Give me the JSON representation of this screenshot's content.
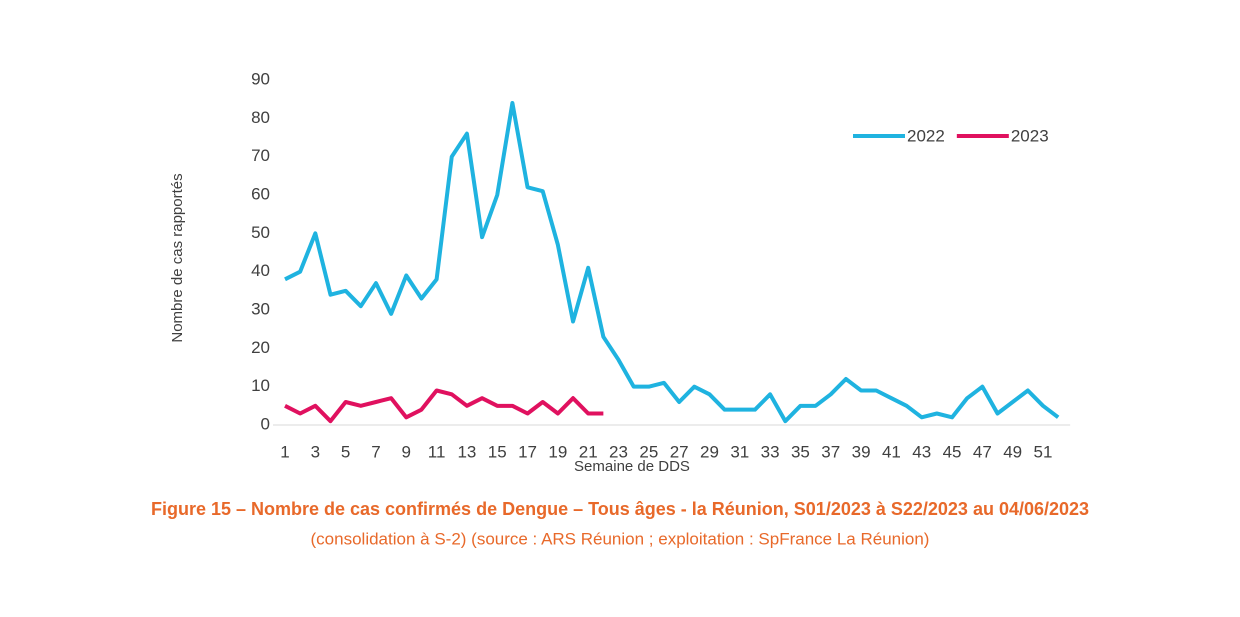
{
  "chart_data": {
    "type": "line",
    "title": "Figure 15 – Nombre de cas confirmés de Dengue – Tous âges - la Réunion, S01/2023 à S22/2023 au 04/06/2023",
    "subtitle": "(consolidation à S-2) (source : ARS Réunion ; exploitation : SpFrance La Réunion)",
    "y_label": "Nombre de cas rapportés",
    "x_label": "Semaine de DDS",
    "categories": [
      1,
      null,
      3,
      null,
      5,
      null,
      7,
      null,
      9,
      null,
      11,
      null,
      13,
      null,
      15,
      null,
      17,
      null,
      19,
      null,
      21,
      null,
      23,
      null,
      25,
      null,
      27,
      null,
      29,
      null,
      31,
      null,
      33,
      null,
      35,
      null,
      37,
      null,
      39,
      null,
      41,
      null,
      43,
      null,
      45,
      null,
      47,
      null,
      49,
      null,
      51,
      null
    ],
    "series": [
      {
        "name": "2022",
        "color": "#1fb3e0",
        "values": [
          38,
          40,
          50,
          34,
          35,
          31,
          37,
          29,
          39,
          33,
          38,
          70,
          76,
          49,
          60,
          84,
          62,
          61,
          47,
          27,
          41,
          23,
          17,
          10,
          10,
          11,
          6,
          10,
          8,
          4,
          4,
          4,
          8,
          1,
          5,
          5,
          8,
          12,
          9,
          9,
          7,
          5,
          2,
          3,
          2,
          7,
          10,
          3,
          6,
          9,
          5,
          2
        ]
      },
      {
        "name": "2023",
        "color": "#e0115f",
        "values": [
          5,
          3,
          5,
          1,
          6,
          5,
          6,
          7,
          2,
          4,
          9,
          8,
          5,
          7,
          5,
          5,
          3,
          6,
          3,
          7,
          3,
          3,
          null,
          null,
          null,
          null,
          null,
          null,
          null,
          null,
          null,
          null,
          null,
          null,
          null,
          null,
          null,
          null,
          null,
          null,
          null,
          null,
          null,
          null,
          null,
          null,
          null,
          null,
          null,
          null,
          null,
          null
        ]
      }
    ],
    "ylim": [
      0,
      90
    ],
    "yticks": [
      0,
      10,
      20,
      30,
      40,
      50,
      60,
      70,
      80,
      90
    ],
    "legend": "top-right",
    "grid": false,
    "title_color": "#e8692a"
  }
}
